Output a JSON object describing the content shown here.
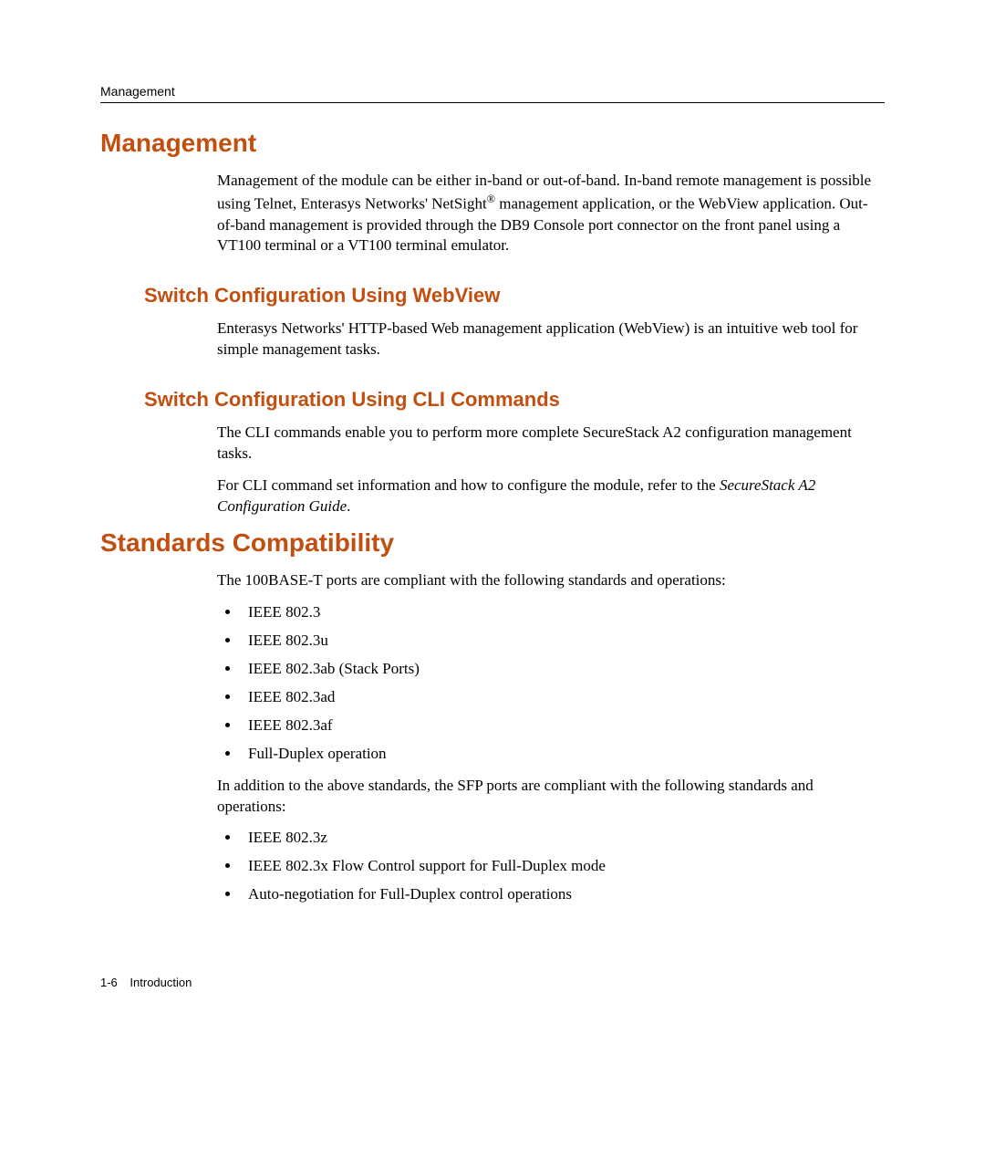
{
  "colors": {
    "heading": "#c24f10",
    "text": "#000000",
    "background": "#ffffff",
    "rule": "#000000"
  },
  "fonts": {
    "heading_family": "Arial, Helvetica, sans-serif",
    "body_family": "Palatino Linotype, Book Antiqua, Palatino, Georgia, serif",
    "h1_size_pt": 21,
    "h2_size_pt": 16,
    "body_size_pt": 13,
    "footer_size_pt": 10
  },
  "running_head": "Management",
  "sections": {
    "management": {
      "title": "Management",
      "para1_a": "Management of the module can be either in-band or out-of-band. In-band remote management is possible using Telnet, Enterasys Networks' NetSight",
      "para1_reg": "®",
      "para1_b": " management application, or the WebView application. Out-of-band management is provided through the DB9 Console port connector on the front panel using a VT100 terminal or a VT100 terminal emulator.",
      "webview": {
        "title": "Switch Configuration Using WebView",
        "para": "Enterasys Networks' HTTP-based Web management application (WebView) is an intuitive web tool for simple management tasks."
      },
      "cli": {
        "title": "Switch Configuration Using CLI Commands",
        "para1": "The CLI commands enable you to perform more complete SecureStack A2 configuration management tasks.",
        "para2_a": "For CLI command set information and how to configure the module, refer to the ",
        "para2_em": "SecureStack A2 Configuration Guide",
        "para2_b": "."
      }
    },
    "standards": {
      "title": "Standards Compatibility",
      "intro": "The 100BASE-T ports are compliant with the following standards and operations:",
      "list1": [
        "IEEE 802.3",
        "IEEE 802.3u",
        "IEEE 802.3ab (Stack Ports)",
        "IEEE 802.3ad",
        "IEEE 802.3af",
        "Full-Duplex operation"
      ],
      "para2": "In addition to the above standards, the SFP ports are compliant with the following standards and operations:",
      "list2": [
        "IEEE 802.3z",
        "IEEE 802.3x Flow Control support for Full-Duplex mode",
        "Auto-negotiation for Full-Duplex control operations"
      ]
    }
  },
  "footer": {
    "page": "1-6",
    "chapter": "Introduction"
  }
}
